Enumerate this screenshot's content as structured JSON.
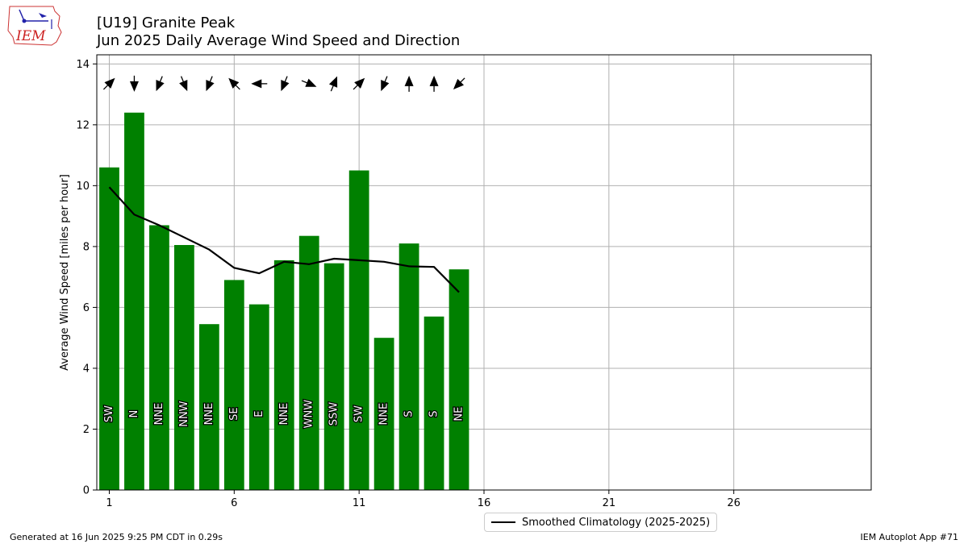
{
  "title_line1": "[U19] Granite Peak",
  "title_line2": "Jun 2025 Daily Average Wind Speed and Direction",
  "footer_left": "Generated at 16 Jun 2025 9:25 PM CDT in 0.29s",
  "footer_right": "IEM Autoplot App #71",
  "logo_text": "IEM",
  "legend_label": "Smoothed Climatology (2025-2025)",
  "colors": {
    "bar": "#008000",
    "line": "#000000",
    "grid": "#b0b0b0"
  },
  "chart_data": {
    "type": "bar",
    "ylabel": "Average Wind Speed [miles per hour]",
    "xlim": [
      0.5,
      31.5
    ],
    "ylim": [
      0,
      14.3
    ],
    "xticks": [
      1,
      6,
      11,
      16,
      21,
      26
    ],
    "yticks": [
      0,
      2,
      4,
      6,
      8,
      10,
      12,
      14
    ],
    "grid": true,
    "legend_position": "bottom-center",
    "days": [
      1,
      2,
      3,
      4,
      5,
      6,
      7,
      8,
      9,
      10,
      11,
      12,
      13,
      14,
      15
    ],
    "speeds": [
      10.6,
      12.4,
      8.7,
      8.05,
      5.45,
      6.9,
      6.1,
      7.55,
      8.35,
      7.45,
      10.5,
      5.0,
      8.1,
      5.7,
      7.25
    ],
    "directions": [
      "SW",
      "N",
      "NNE",
      "NNW",
      "NNE",
      "SE",
      "E",
      "NNE",
      "WNW",
      "SSW",
      "SW",
      "NNE",
      "S",
      "S",
      "NE"
    ],
    "arrow_degrees": [
      225,
      0,
      22.5,
      337.5,
      22.5,
      135,
      90,
      22.5,
      292.5,
      202.5,
      225,
      22.5,
      180,
      180,
      45
    ],
    "climatology": [
      9.95,
      9.05,
      8.7,
      8.3,
      7.9,
      7.3,
      7.12,
      7.5,
      7.42,
      7.6,
      7.55,
      7.5,
      7.35,
      7.33,
      6.5
    ]
  }
}
